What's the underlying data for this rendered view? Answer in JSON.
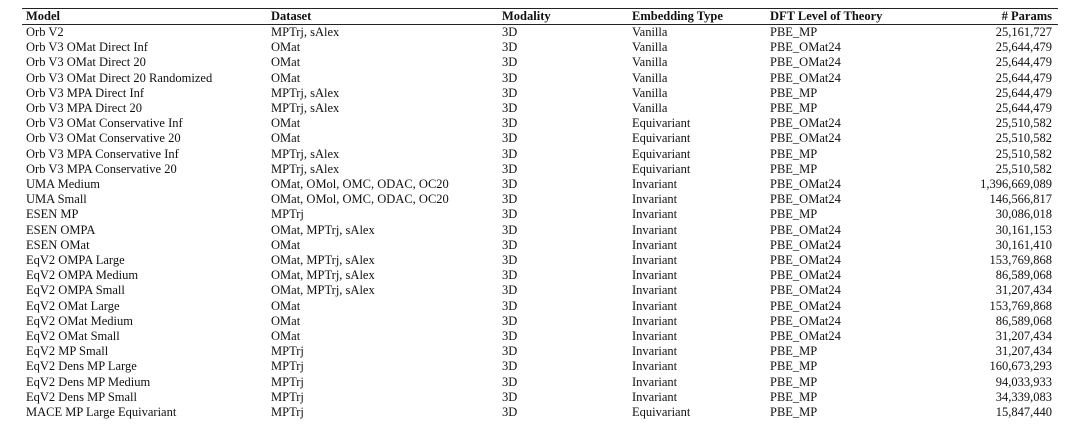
{
  "table": {
    "header": [
      "Model",
      "Dataset",
      "Modality",
      "Embedding Type",
      "DFT Level of Theory",
      "# Params"
    ],
    "rows": [
      [
        "Orb V2",
        "MPTrj, sAlex",
        "3D",
        "Vanilla",
        "PBE_MP",
        "25,161,727"
      ],
      [
        "Orb V3 OMat Direct Inf",
        "OMat",
        "3D",
        "Vanilla",
        "PBE_OMat24",
        "25,644,479"
      ],
      [
        "Orb V3 OMat Direct 20",
        "OMat",
        "3D",
        "Vanilla",
        "PBE_OMat24",
        "25,644,479"
      ],
      [
        "Orb V3 OMat Direct 20 Randomized",
        "OMat",
        "3D",
        "Vanilla",
        "PBE_OMat24",
        "25,644,479"
      ],
      [
        "Orb V3 MPA Direct Inf",
        "MPTrj, sAlex",
        "3D",
        "Vanilla",
        "PBE_MP",
        "25,644,479"
      ],
      [
        "Orb V3 MPA Direct 20",
        "MPTrj, sAlex",
        "3D",
        "Vanilla",
        "PBE_MP",
        "25,644,479"
      ],
      [
        "Orb V3 OMat Conservative Inf",
        "OMat",
        "3D",
        "Equivariant",
        "PBE_OMat24",
        "25,510,582"
      ],
      [
        "Orb V3 OMat Conservative 20",
        "OMat",
        "3D",
        "Equivariant",
        "PBE_OMat24",
        "25,510,582"
      ],
      [
        "Orb V3 MPA Conservative Inf",
        "MPTrj, sAlex",
        "3D",
        "Equivariant",
        "PBE_MP",
        "25,510,582"
      ],
      [
        "Orb V3 MPA Conservative 20",
        "MPTrj, sAlex",
        "3D",
        "Equivariant",
        "PBE_MP",
        "25,510,582"
      ],
      [
        "UMA Medium",
        "OMat, OMol, OMC, ODAC, OC20",
        "3D",
        "Invariant",
        "PBE_OMat24",
        "1,396,669,089"
      ],
      [
        "UMA Small",
        "OMat, OMol, OMC, ODAC, OC20",
        "3D",
        "Invariant",
        "PBE_OMat24",
        "146,566,817"
      ],
      [
        "ESEN MP",
        "MPTrj",
        "3D",
        "Invariant",
        "PBE_MP",
        "30,086,018"
      ],
      [
        "ESEN OMPA",
        "OMat, MPTrj, sAlex",
        "3D",
        "Invariant",
        "PBE_OMat24",
        "30,161,153"
      ],
      [
        "ESEN OMat",
        "OMat",
        "3D",
        "Invariant",
        "PBE_OMat24",
        "30,161,410"
      ],
      [
        "EqV2 OMPA Large",
        "OMat, MPTrj, sAlex",
        "3D",
        "Invariant",
        "PBE_OMat24",
        "153,769,868"
      ],
      [
        "EqV2 OMPA Medium",
        "OMat, MPTrj, sAlex",
        "3D",
        "Invariant",
        "PBE_OMat24",
        "86,589,068"
      ],
      [
        "EqV2 OMPA Small",
        "OMat, MPTrj, sAlex",
        "3D",
        "Invariant",
        "PBE_OMat24",
        "31,207,434"
      ],
      [
        "EqV2 OMat Large",
        "OMat",
        "3D",
        "Invariant",
        "PBE_OMat24",
        "153,769,868"
      ],
      [
        "EqV2 OMat Medium",
        "OMat",
        "3D",
        "Invariant",
        "PBE_OMat24",
        "86,589,068"
      ],
      [
        "EqV2 OMat Small",
        "OMat",
        "3D",
        "Invariant",
        "PBE_OMat24",
        "31,207,434"
      ],
      [
        "EqV2 MP Small",
        "MPTrj",
        "3D",
        "Invariant",
        "PBE_MP",
        "31,207,434"
      ],
      [
        "EqV2 Dens MP Large",
        "MPTrj",
        "3D",
        "Invariant",
        "PBE_MP",
        "160,673,293"
      ],
      [
        "EqV2 Dens MP Medium",
        "MPTrj",
        "3D",
        "Invariant",
        "PBE_MP",
        "94,033,933"
      ],
      [
        "EqV2 Dens MP Small",
        "MPTrj",
        "3D",
        "Invariant",
        "PBE_MP",
        "34,339,083"
      ],
      [
        "MACE MP Large Equivariant",
        "MPTrj",
        "3D",
        "Equivariant",
        "PBE_MP",
        "15,847,440"
      ]
    ]
  }
}
